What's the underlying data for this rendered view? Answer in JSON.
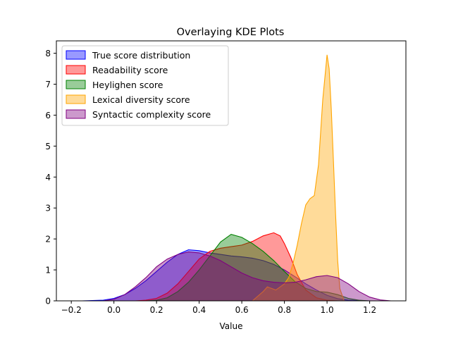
{
  "chart_data": {
    "type": "area",
    "title": "Overlaying KDE Plots",
    "xlabel": "Value",
    "ylabel": "",
    "xlim": [
      -0.27,
      1.37
    ],
    "ylim": [
      0,
      8.4
    ],
    "xticks": [
      -0.2,
      0.0,
      0.2,
      0.4,
      0.6,
      0.8,
      1.0,
      1.2
    ],
    "xtick_labels": [
      "−0.2",
      "0.0",
      "0.2",
      "0.4",
      "0.6",
      "0.8",
      "1.0",
      "1.2"
    ],
    "yticks": [
      0,
      1,
      2,
      3,
      4,
      5,
      6,
      7,
      8
    ],
    "ytick_labels": [
      "0",
      "1",
      "2",
      "3",
      "4",
      "5",
      "6",
      "7",
      "8"
    ],
    "legend_position": "top-left",
    "grid": false,
    "series": [
      {
        "name": "True score distribution",
        "color": "#0000ff",
        "points": [
          [
            -0.15,
            0
          ],
          [
            -0.05,
            0.02
          ],
          [
            0.0,
            0.08
          ],
          [
            0.05,
            0.2
          ],
          [
            0.1,
            0.4
          ],
          [
            0.15,
            0.65
          ],
          [
            0.2,
            0.95
          ],
          [
            0.25,
            1.25
          ],
          [
            0.3,
            1.5
          ],
          [
            0.35,
            1.65
          ],
          [
            0.4,
            1.62
          ],
          [
            0.45,
            1.55
          ],
          [
            0.5,
            1.5
          ],
          [
            0.55,
            1.45
          ],
          [
            0.6,
            1.42
          ],
          [
            0.65,
            1.38
          ],
          [
            0.7,
            1.3
          ],
          [
            0.75,
            1.18
          ],
          [
            0.8,
            1.0
          ],
          [
            0.85,
            0.78
          ],
          [
            0.9,
            0.55
          ],
          [
            0.95,
            0.35
          ],
          [
            1.0,
            0.18
          ],
          [
            1.05,
            0.07
          ],
          [
            1.1,
            0.02
          ],
          [
            1.2,
            0
          ]
        ]
      },
      {
        "name": "Readability score",
        "color": "#ff0000",
        "points": [
          [
            0.1,
            0
          ],
          [
            0.15,
            0.02
          ],
          [
            0.2,
            0.08
          ],
          [
            0.25,
            0.25
          ],
          [
            0.3,
            0.55
          ],
          [
            0.35,
            0.95
          ],
          [
            0.4,
            1.35
          ],
          [
            0.45,
            1.6
          ],
          [
            0.5,
            1.7
          ],
          [
            0.55,
            1.75
          ],
          [
            0.6,
            1.8
          ],
          [
            0.65,
            1.92
          ],
          [
            0.7,
            2.1
          ],
          [
            0.75,
            2.2
          ],
          [
            0.78,
            2.1
          ],
          [
            0.8,
            1.85
          ],
          [
            0.83,
            1.4
          ],
          [
            0.86,
            0.85
          ],
          [
            0.9,
            0.35
          ],
          [
            0.95,
            0.1
          ],
          [
            1.0,
            0.02
          ],
          [
            1.05,
            0
          ]
        ]
      },
      {
        "name": "Heylighen score",
        "color": "#008000",
        "points": [
          [
            0.15,
            0
          ],
          [
            0.2,
            0.02
          ],
          [
            0.25,
            0.1
          ],
          [
            0.3,
            0.3
          ],
          [
            0.35,
            0.6
          ],
          [
            0.4,
            1.0
          ],
          [
            0.45,
            1.45
          ],
          [
            0.5,
            1.9
          ],
          [
            0.55,
            2.15
          ],
          [
            0.6,
            2.05
          ],
          [
            0.65,
            1.85
          ],
          [
            0.7,
            1.6
          ],
          [
            0.75,
            1.3
          ],
          [
            0.8,
            0.95
          ],
          [
            0.85,
            0.62
          ],
          [
            0.9,
            0.4
          ],
          [
            0.95,
            0.3
          ],
          [
            1.0,
            0.28
          ],
          [
            1.05,
            0.2
          ],
          [
            1.1,
            0.08
          ],
          [
            1.15,
            0.02
          ],
          [
            1.2,
            0
          ]
        ]
      },
      {
        "name": "Lexical diversity score",
        "color": "#ffa500",
        "points": [
          [
            0.65,
            0
          ],
          [
            0.7,
            0.3
          ],
          [
            0.72,
            0.45
          ],
          [
            0.74,
            0.4
          ],
          [
            0.76,
            0.35
          ],
          [
            0.78,
            0.45
          ],
          [
            0.8,
            0.55
          ],
          [
            0.82,
            0.75
          ],
          [
            0.84,
            1.2
          ],
          [
            0.86,
            1.8
          ],
          [
            0.88,
            2.5
          ],
          [
            0.9,
            3.1
          ],
          [
            0.92,
            3.3
          ],
          [
            0.94,
            3.4
          ],
          [
            0.96,
            4.4
          ],
          [
            0.98,
            6.5
          ],
          [
            1.0,
            7.95
          ],
          [
            1.01,
            7.5
          ],
          [
            1.02,
            6.2
          ],
          [
            1.03,
            4.5
          ],
          [
            1.04,
            2.8
          ],
          [
            1.05,
            1.3
          ],
          [
            1.06,
            0.4
          ],
          [
            1.08,
            0
          ]
        ]
      },
      {
        "name": "Syntactic complexity score",
        "color": "#800080",
        "points": [
          [
            -0.05,
            0
          ],
          [
            0.0,
            0.05
          ],
          [
            0.05,
            0.2
          ],
          [
            0.1,
            0.45
          ],
          [
            0.15,
            0.75
          ],
          [
            0.2,
            1.1
          ],
          [
            0.25,
            1.35
          ],
          [
            0.3,
            1.5
          ],
          [
            0.35,
            1.58
          ],
          [
            0.4,
            1.55
          ],
          [
            0.45,
            1.45
          ],
          [
            0.5,
            1.3
          ],
          [
            0.55,
            1.1
          ],
          [
            0.6,
            0.9
          ],
          [
            0.65,
            0.75
          ],
          [
            0.7,
            0.65
          ],
          [
            0.75,
            0.6
          ],
          [
            0.8,
            0.58
          ],
          [
            0.85,
            0.6
          ],
          [
            0.9,
            0.68
          ],
          [
            0.95,
            0.78
          ],
          [
            1.0,
            0.82
          ],
          [
            1.05,
            0.75
          ],
          [
            1.1,
            0.55
          ],
          [
            1.15,
            0.3
          ],
          [
            1.2,
            0.12
          ],
          [
            1.25,
            0.03
          ],
          [
            1.3,
            0
          ]
        ]
      }
    ]
  }
}
